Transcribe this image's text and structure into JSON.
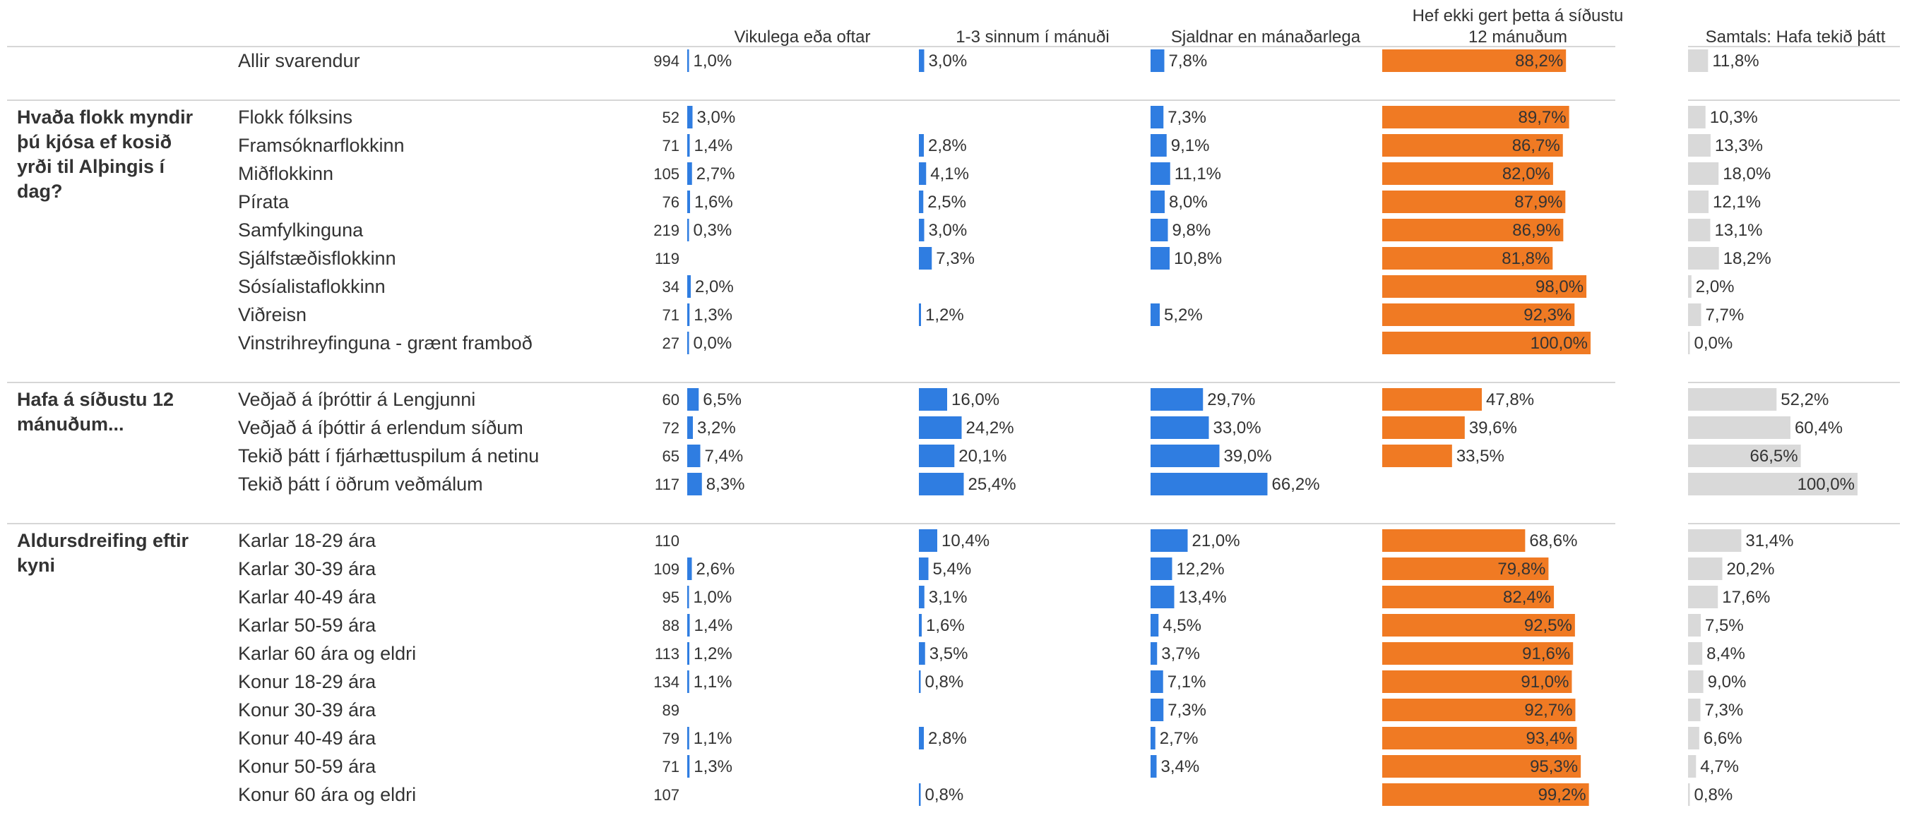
{
  "chart_data": {
    "type": "bar",
    "columns": [
      {
        "label": "Vikulega eða oftar",
        "color": "#2f7de1",
        "scale_max": 100
      },
      {
        "label": "1-3 sinnum í mánuði",
        "color": "#2f7de1",
        "scale_max": 100
      },
      {
        "label": "Sjaldnar en mánaðarlega",
        "color": "#2f7de1",
        "scale_max": 100
      },
      {
        "label": "Hef ekki gert þetta á síðustu 12 mánuðum",
        "color": "#f07a23",
        "scale_max": 100
      },
      {
        "label": "Samtals: Hafa tekið þátt",
        "color": "#d9d9d9",
        "scale_max": 100
      }
    ],
    "groups": [
      {
        "title": "",
        "rows": [
          {
            "label": "Allir svarendur",
            "n": "994",
            "values": [
              1.0,
              3.0,
              7.8,
              88.2,
              11.8
            ],
            "labels": [
              "1,0%",
              "3,0%",
              "7,8%",
              "88,2%",
              "11,8%"
            ]
          }
        ]
      },
      {
        "title": "Hvaða flokk myndir þú kjósa ef kosið yrði til Alþingis í dag?",
        "title_lines": [
          "Hvaða flokk myndir",
          "þú kjósa ef kosið",
          "yrði til Alþingis í",
          "dag?"
        ],
        "rows": [
          {
            "label": "Flokk fólksins",
            "n": "52",
            "values": [
              3.0,
              null,
              7.3,
              89.7,
              10.3
            ],
            "labels": [
              "3,0%",
              "",
              "7,3%",
              "89,7%",
              "10,3%"
            ]
          },
          {
            "label": "Framsóknarflokkinn",
            "n": "71",
            "values": [
              1.4,
              2.8,
              9.1,
              86.7,
              13.3
            ],
            "labels": [
              "1,4%",
              "2,8%",
              "9,1%",
              "86,7%",
              "13,3%"
            ]
          },
          {
            "label": "Miðflokkinn",
            "n": "105",
            "values": [
              2.7,
              4.1,
              11.1,
              82.0,
              18.0
            ],
            "labels": [
              "2,7%",
              "4,1%",
              "11,1%",
              "82,0%",
              "18,0%"
            ]
          },
          {
            "label": "Pírata",
            "n": "76",
            "values": [
              1.6,
              2.5,
              8.0,
              87.9,
              12.1
            ],
            "labels": [
              "1,6%",
              "2,5%",
              "8,0%",
              "87,9%",
              "12,1%"
            ]
          },
          {
            "label": "Samfylkinguna",
            "n": "219",
            "values": [
              0.3,
              3.0,
              9.8,
              86.9,
              13.1
            ],
            "labels": [
              "0,3%",
              "3,0%",
              "9,8%",
              "86,9%",
              "13,1%"
            ]
          },
          {
            "label": "Sjálfstæðisflokkinn",
            "n": "119",
            "values": [
              null,
              7.3,
              10.8,
              81.8,
              18.2
            ],
            "labels": [
              "",
              "7,3%",
              "10,8%",
              "81,8%",
              "18,2%"
            ]
          },
          {
            "label": "Sósíalistaflokkinn",
            "n": "34",
            "values": [
              2.0,
              null,
              null,
              98.0,
              2.0
            ],
            "labels": [
              "2,0%",
              "",
              "",
              "98,0%",
              "2,0%"
            ]
          },
          {
            "label": "Viðreisn",
            "n": "71",
            "values": [
              1.3,
              1.2,
              5.2,
              92.3,
              7.7
            ],
            "labels": [
              "1,3%",
              "1,2%",
              "5,2%",
              "92,3%",
              "7,7%"
            ]
          },
          {
            "label": "Vinstrihreyfinguna - grænt framboð",
            "n": "27",
            "values": [
              0.0,
              null,
              null,
              100.0,
              0.0
            ],
            "labels": [
              "0,0%",
              "",
              "",
              "100,0%",
              "0,0%"
            ]
          }
        ]
      },
      {
        "title": "Hafa á síðustu 12 mánuðum...",
        "title_lines": [
          "Hafa á síðustu 12",
          "mánuðum..."
        ],
        "rows": [
          {
            "label": "Veðjað á íþróttir á Lengjunni",
            "n": "60",
            "values": [
              6.5,
              16.0,
              29.7,
              47.8,
              52.2
            ],
            "labels": [
              "6,5%",
              "16,0%",
              "29,7%",
              "47,8%",
              "52,2%"
            ]
          },
          {
            "label": "Veðjað á íþóttir á erlendum síðum",
            "n": "72",
            "values": [
              3.2,
              24.2,
              33.0,
              39.6,
              60.4
            ],
            "labels": [
              "3,2%",
              "24,2%",
              "33,0%",
              "39,6%",
              "60,4%"
            ]
          },
          {
            "label": "Tekið þátt í fjárhættuspilum á netinu",
            "n": "65",
            "values": [
              7.4,
              20.1,
              39.0,
              33.5,
              66.5
            ],
            "labels": [
              "7,4%",
              "20,1%",
              "39,0%",
              "33,5%",
              "66,5%"
            ]
          },
          {
            "label": "Tekið þátt í öðrum veðmálum",
            "n": "117",
            "values": [
              8.3,
              25.4,
              66.2,
              null,
              100.0
            ],
            "labels": [
              "8,3%",
              "25,4%",
              "66,2%",
              "",
              "100,0%"
            ]
          }
        ]
      },
      {
        "title": "Aldursdreifing eftir kyni",
        "title_lines": [
          "Aldursdreifing eftir",
          "kyni"
        ],
        "rows": [
          {
            "label": "Karlar 18-29 ára",
            "n": "110",
            "values": [
              null,
              10.4,
              21.0,
              68.6,
              31.4
            ],
            "labels": [
              "",
              "10,4%",
              "21,0%",
              "68,6%",
              "31,4%"
            ]
          },
          {
            "label": "Karlar 30-39 ára",
            "n": "109",
            "values": [
              2.6,
              5.4,
              12.2,
              79.8,
              20.2
            ],
            "labels": [
              "2,6%",
              "5,4%",
              "12,2%",
              "79,8%",
              "20,2%"
            ]
          },
          {
            "label": "Karlar 40-49 ára",
            "n": "95",
            "values": [
              1.0,
              3.1,
              13.4,
              82.4,
              17.6
            ],
            "labels": [
              "1,0%",
              "3,1%",
              "13,4%",
              "82,4%",
              "17,6%"
            ]
          },
          {
            "label": "Karlar 50-59 ára",
            "n": "88",
            "values": [
              1.4,
              1.6,
              4.5,
              92.5,
              7.5
            ],
            "labels": [
              "1,4%",
              "1,6%",
              "4,5%",
              "92,5%",
              "7,5%"
            ]
          },
          {
            "label": "Karlar 60 ára og eldri",
            "n": "113",
            "values": [
              1.2,
              3.5,
              3.7,
              91.6,
              8.4
            ],
            "labels": [
              "1,2%",
              "3,5%",
              "3,7%",
              "91,6%",
              "8,4%"
            ]
          },
          {
            "label": "Konur 18-29 ára",
            "n": "134",
            "values": [
              1.1,
              0.8,
              7.1,
              91.0,
              9.0
            ],
            "labels": [
              "1,1%",
              "0,8%",
              "7,1%",
              "91,0%",
              "9,0%"
            ]
          },
          {
            "label": "Konur 30-39 ára",
            "n": "89",
            "values": [
              null,
              null,
              7.3,
              92.7,
              7.3
            ],
            "labels": [
              "",
              "",
              "7,3%",
              "92,7%",
              "7,3%"
            ]
          },
          {
            "label": "Konur 40-49 ára",
            "n": "79",
            "values": [
              1.1,
              2.8,
              2.7,
              93.4,
              6.6
            ],
            "labels": [
              "1,1%",
              "2,8%",
              "2,7%",
              "93,4%",
              "6,6%"
            ]
          },
          {
            "label": "Konur 50-59 ára",
            "n": "71",
            "values": [
              1.3,
              null,
              3.4,
              95.3,
              4.7
            ],
            "labels": [
              "1,3%",
              "",
              "3,4%",
              "95,3%",
              "4,7%"
            ]
          },
          {
            "label": "Konur 60 ára og eldri",
            "n": "107",
            "values": [
              null,
              0.8,
              null,
              99.2,
              0.8
            ],
            "labels": [
              "",
              "0,8%",
              "",
              "99,2%",
              "0,8%"
            ]
          }
        ]
      }
    ]
  }
}
